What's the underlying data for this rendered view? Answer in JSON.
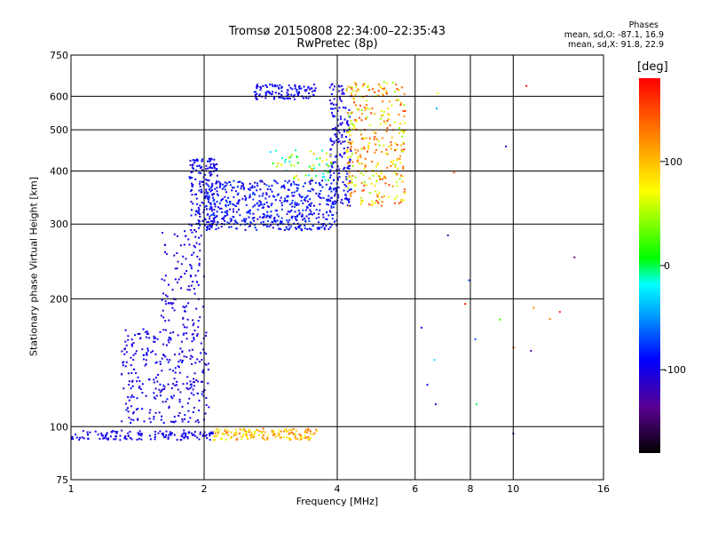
{
  "header": {
    "title_line1": "Tromsø 20150808 22:34:00–22:35:43",
    "title_line2": "RwPretec (8p)",
    "stats_title": "Phases",
    "stats_o": "mean, sd,O: -87.1, 16.9",
    "stats_x": "mean, sd,X: 91.8, 22.9"
  },
  "chart_data": {
    "type": "scatter",
    "xlabel": "Frequency [MHz]",
    "ylabel": "Stationary phase Virtual Height [km]",
    "xscale": "log",
    "yscale": "log",
    "xlim": [
      1,
      16
    ],
    "ylim": [
      75,
      750
    ],
    "x_ticks": [
      1,
      2,
      4,
      6,
      8,
      10,
      16
    ],
    "x_tick_labels": [
      "1",
      "2",
      "4",
      "6",
      "8",
      "10",
      "16"
    ],
    "y_ticks": [
      75,
      100,
      200,
      300,
      400,
      500,
      600,
      750
    ],
    "y_tick_labels": [
      "75",
      "100",
      "200",
      "300",
      "400",
      "500",
      "600",
      "750"
    ],
    "grid": true,
    "colorbar": {
      "label": "[deg]",
      "range": [
        -180,
        180
      ],
      "ticks": [
        100,
        0,
        -100
      ],
      "tick_labels": [
        "100",
        "0",
        "-100"
      ]
    },
    "clusters": [
      {
        "x": [
          1.0,
          2.1
        ],
        "y": [
          93,
          98
        ],
        "phase": [
          -110,
          -90
        ],
        "n": 140
      },
      {
        "x": [
          2.1,
          3.6
        ],
        "y": [
          93,
          99
        ],
        "phase": [
          60,
          140
        ],
        "n": 150
      },
      {
        "x": [
          1.3,
          2.05
        ],
        "y": [
          102,
          170
        ],
        "phase": [
          -115,
          -85
        ],
        "n": 300
      },
      {
        "x": [
          1.6,
          2.0
        ],
        "y": [
          170,
          290
        ],
        "phase": [
          -115,
          -90
        ],
        "n": 110
      },
      {
        "x": [
          1.85,
          2.15
        ],
        "y": [
          290,
          430
        ],
        "phase": [
          -110,
          -80
        ],
        "n": 180
      },
      {
        "x": [
          2.0,
          4.0
        ],
        "y": [
          290,
          380
        ],
        "phase": [
          -110,
          -70
        ],
        "n": 520
      },
      {
        "x": [
          2.6,
          3.6
        ],
        "y": [
          590,
          640
        ],
        "phase": [
          -110,
          -80
        ],
        "n": 110
      },
      {
        "x": [
          3.85,
          4.3
        ],
        "y": [
          330,
          650
        ],
        "phase": [
          -115,
          -85
        ],
        "n": 170
      },
      {
        "x": [
          4.2,
          5.7
        ],
        "y": [
          330,
          650
        ],
        "phase": [
          40,
          160
        ],
        "n": 340
      },
      {
        "x": [
          2.8,
          3.9
        ],
        "y": [
          380,
          450
        ],
        "phase": [
          -30,
          100
        ],
        "n": 60
      },
      {
        "x": [
          5.8,
          15.0
        ],
        "y": [
          95,
          700
        ],
        "phase": [
          -150,
          180
        ],
        "n": 22
      }
    ]
  }
}
